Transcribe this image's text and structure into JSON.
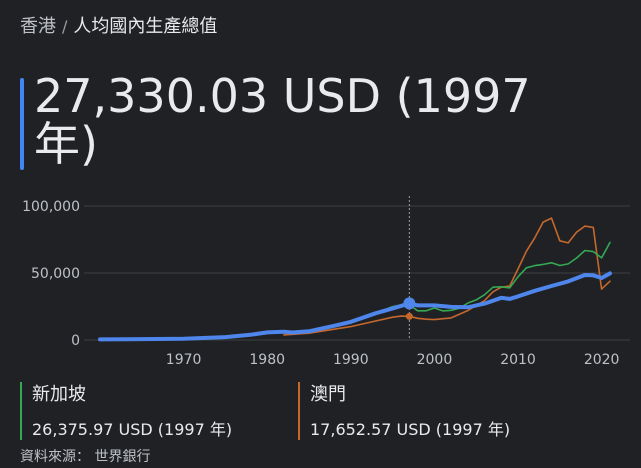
{
  "breadcrumb": {
    "region": "香港",
    "separator": "/",
    "metric": "人均國內生產總值"
  },
  "headline": {
    "value": "27,330.03 USD (1997 年)"
  },
  "colors": {
    "hong_kong": "#4f86ec",
    "singapore": "#34a853",
    "macau": "#c5682c",
    "grid": "#3c4043",
    "cursor": "#9aa0a6"
  },
  "chart_data": {
    "type": "line",
    "xlim": [
      1960,
      2021
    ],
    "ylim": [
      0,
      100000
    ],
    "y_ticks": [
      "100,000",
      "50,000",
      "0"
    ],
    "x_ticks": [
      "1970",
      "1980",
      "1990",
      "2000",
      "2010",
      "2020"
    ],
    "highlight_year": 1997,
    "series": [
      {
        "name": "香港",
        "key": "hong_kong",
        "x": [
          1960,
          1965,
          1970,
          1975,
          1978,
          1980,
          1982,
          1983,
          1985,
          1988,
          1990,
          1993,
          1995,
          1997,
          1998,
          2000,
          2002,
          2004,
          2006,
          2008,
          2009,
          2010,
          2012,
          2014,
          2016,
          2018,
          2019,
          2020,
          2021
        ],
        "y": [
          430,
          680,
          960,
          2200,
          3900,
          5700,
          6100,
          5600,
          6500,
          10600,
          13500,
          20000,
          23500,
          27330,
          25800,
          25800,
          24700,
          24400,
          27200,
          31500,
          30700,
          32500,
          36700,
          40300,
          43700,
          48500,
          48300,
          46300,
          49700
        ]
      },
      {
        "name": "新加坡",
        "key": "singapore",
        "x": [
          1960,
          1965,
          1970,
          1975,
          1980,
          1985,
          1990,
          1995,
          1996,
          1997,
          1998,
          1999,
          2000,
          2001,
          2002,
          2003,
          2004,
          2005,
          2006,
          2007,
          2008,
          2009,
          2010,
          2011,
          2012,
          2013,
          2014,
          2015,
          2016,
          2017,
          2018,
          2019,
          2020,
          2021
        ],
        "y": [
          430,
          520,
          930,
          2500,
          5000,
          7000,
          12800,
          24900,
          26200,
          26376,
          21800,
          21800,
          23900,
          21700,
          22200,
          23700,
          27600,
          29900,
          33800,
          39400,
          39700,
          38900,
          47200,
          53900,
          55500,
          56400,
          57600,
          55600,
          56800,
          61200,
          66800,
          66000,
          61300,
          72800
        ]
      },
      {
        "name": "澳門",
        "key": "macau",
        "x": [
          1982,
          1985,
          1990,
          1995,
          1996,
          1997,
          1998,
          1999,
          2000,
          2002,
          2004,
          2006,
          2007,
          2008,
          2009,
          2010,
          2011,
          2012,
          2013,
          2014,
          2015,
          2016,
          2017,
          2018,
          2019,
          2020,
          2021
        ],
        "y": [
          3800,
          5100,
          10000,
          17000,
          17800,
          17652,
          16200,
          15500,
          15200,
          16500,
          22000,
          29500,
          36000,
          39400,
          40200,
          53000,
          66300,
          76300,
          88000,
          91000,
          74000,
          72500,
          80500,
          85000,
          84000,
          38000,
          43900
        ]
      }
    ]
  },
  "legend": [
    {
      "name": "新加坡",
      "value": "26,375.97 USD (1997 年)"
    },
    {
      "name": "澳門",
      "value": "17,652.57 USD (1997 年)"
    }
  ],
  "source": "資料來源： 世界銀行"
}
